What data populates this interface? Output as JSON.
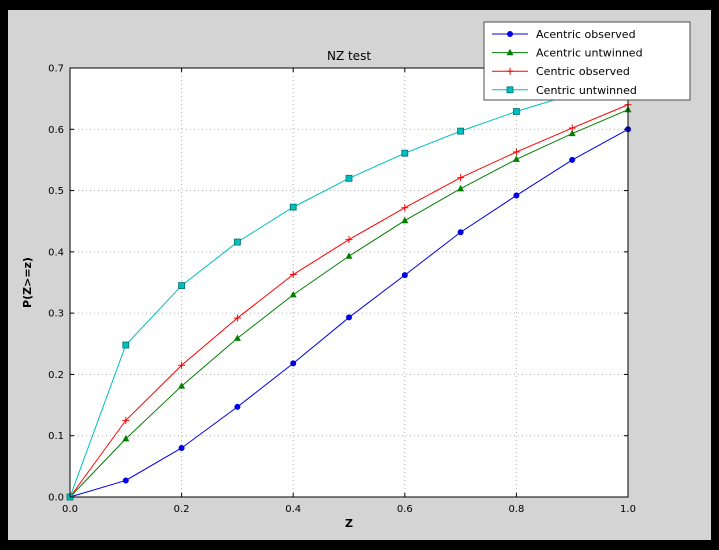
{
  "window": {
    "background": "#000000"
  },
  "figure": {
    "background": "#d4d4d4",
    "axes_background": "#ffffff",
    "grid_color": "#b3b3b3",
    "axis_color": "#000000",
    "legend_border": "#4d4d4d"
  },
  "chart_data": {
    "type": "line",
    "title": "NZ test",
    "xlabel": "Z",
    "ylabel": "P(Z>=z)",
    "xlim": [
      0.0,
      1.0
    ],
    "ylim": [
      0.0,
      0.7
    ],
    "xticks": [
      0.0,
      0.2,
      0.4,
      0.6,
      0.8,
      1.0
    ],
    "yticks": [
      0.0,
      0.1,
      0.2,
      0.3,
      0.4,
      0.5,
      0.6,
      0.7
    ],
    "grid": true,
    "legend_position": "upper right",
    "x": [
      0.0,
      0.1,
      0.2,
      0.3,
      0.4,
      0.5,
      0.6,
      0.7,
      0.8,
      0.9,
      1.0
    ],
    "series": [
      {
        "name": "Acentric observed",
        "color": "#0000e6",
        "marker": "circle",
        "values": [
          0.0,
          0.027,
          0.08,
          0.147,
          0.218,
          0.293,
          0.362,
          0.432,
          0.492,
          0.55,
          0.6
        ]
      },
      {
        "name": "Acentric untwinned",
        "color": "#007f00",
        "marker": "triangle",
        "values": [
          0.0,
          0.095,
          0.181,
          0.259,
          0.33,
          0.393,
          0.451,
          0.503,
          0.551,
          0.593,
          0.632
        ]
      },
      {
        "name": "Centric observed",
        "color": "#ff0000",
        "marker": "plus",
        "values": [
          0.0,
          0.125,
          0.215,
          0.292,
          0.363,
          0.42,
          0.472,
          0.521,
          0.563,
          0.602,
          0.64
        ]
      },
      {
        "name": "Centric untwinned",
        "color": "#00bfbf",
        "marker": "square",
        "values": [
          0.0,
          0.248,
          0.345,
          0.416,
          0.473,
          0.52,
          0.561,
          0.597,
          0.629,
          0.657,
          0.683
        ]
      }
    ]
  }
}
